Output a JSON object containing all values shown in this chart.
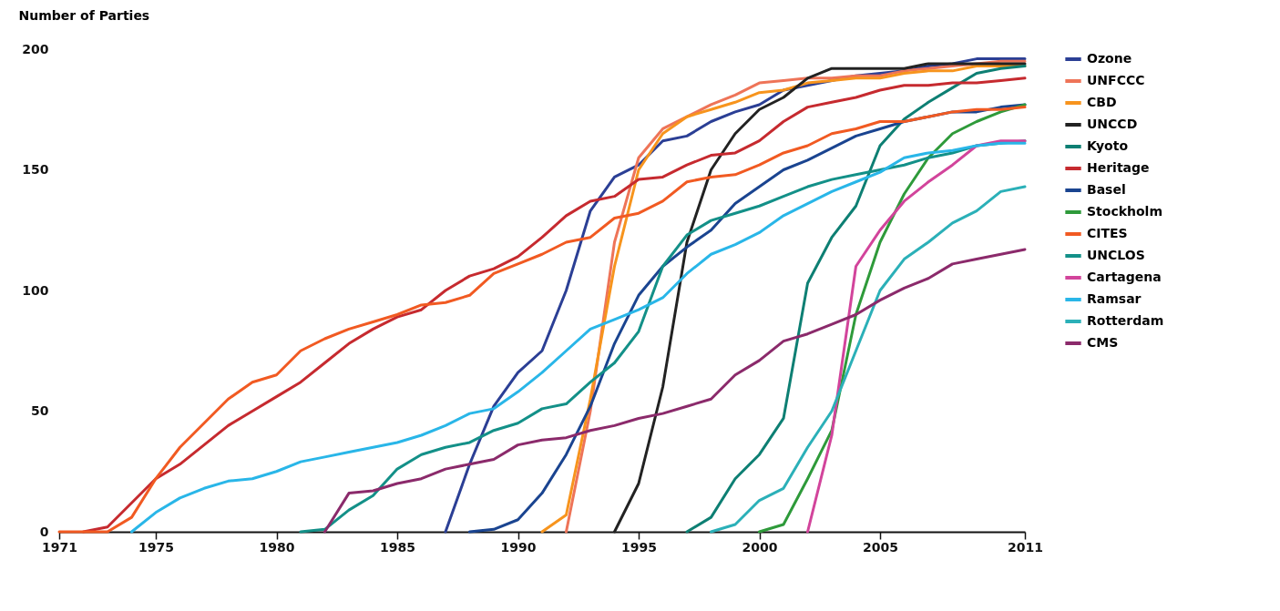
{
  "chart_data": {
    "type": "line",
    "ylabel": "Number of Parties",
    "xlim": [
      1971,
      2011
    ],
    "xticks": [
      1971,
      1975,
      1980,
      1985,
      1990,
      1995,
      2000,
      2005,
      2011
    ],
    "ylim": [
      0,
      200
    ],
    "yticks": [
      0,
      50,
      100,
      150,
      200
    ],
    "legend": "right",
    "line_style": "solid",
    "marker": "none",
    "series": [
      {
        "name": "Ozone",
        "color": "#2b3f95",
        "x": [
          1987,
          1988,
          1989,
          1990,
          1991,
          1992,
          1993,
          1994,
          1995,
          1996,
          1997,
          1998,
          1999,
          2000,
          2001,
          2002,
          2003,
          2004,
          2005,
          2006,
          2007,
          2008,
          2009,
          2010,
          2011
        ],
        "values": [
          0,
          28,
          52,
          66,
          75,
          100,
          133,
          147,
          152,
          162,
          164,
          170,
          174,
          177,
          183,
          185,
          187,
          189,
          190,
          191,
          193,
          194,
          196,
          196,
          196
        ]
      },
      {
        "name": "UNFCCC",
        "color": "#ee7458",
        "x": [
          1992,
          1993,
          1994,
          1995,
          1996,
          1997,
          1998,
          1999,
          2000,
          2001,
          2002,
          2003,
          2004,
          2005,
          2006,
          2007,
          2008,
          2009,
          2010,
          2011
        ],
        "values": [
          0,
          50,
          120,
          155,
          167,
          172,
          177,
          181,
          186,
          187,
          188,
          188,
          189,
          189,
          191,
          192,
          193,
          194,
          195,
          195
        ]
      },
      {
        "name": "CBD",
        "color": "#f7941d",
        "x": [
          1991,
          1992,
          1993,
          1994,
          1995,
          1996,
          1997,
          1998,
          1999,
          2000,
          2001,
          2002,
          2003,
          2004,
          2005,
          2006,
          2007,
          2008,
          2009,
          2010,
          2011
        ],
        "values": [
          0,
          7,
          55,
          110,
          150,
          165,
          172,
          175,
          178,
          182,
          183,
          186,
          187,
          188,
          188,
          190,
          191,
          191,
          193,
          193,
          193
        ]
      },
      {
        "name": "UNCCD",
        "color": "#222222",
        "x": [
          1994,
          1995,
          1996,
          1997,
          1998,
          1999,
          2000,
          2001,
          2002,
          2003,
          2004,
          2005,
          2006,
          2007,
          2008,
          2009,
          2010,
          2011
        ],
        "values": [
          0,
          20,
          60,
          120,
          150,
          165,
          175,
          180,
          188,
          192,
          192,
          192,
          192,
          194,
          194,
          194,
          194,
          194
        ]
      },
      {
        "name": "Kyoto",
        "color": "#0d7f73",
        "x": [
          1997,
          1998,
          1999,
          2000,
          2001,
          2002,
          2003,
          2004,
          2005,
          2006,
          2007,
          2008,
          2009,
          2010,
          2011
        ],
        "values": [
          0,
          6,
          22,
          32,
          47,
          103,
          122,
          135,
          160,
          171,
          178,
          184,
          190,
          192,
          193
        ]
      },
      {
        "name": "Heritage",
        "color": "#c62a2f",
        "x": [
          1972,
          1973,
          1974,
          1975,
          1976,
          1977,
          1978,
          1979,
          1980,
          1981,
          1982,
          1983,
          1984,
          1985,
          1986,
          1987,
          1988,
          1989,
          1990,
          1991,
          1992,
          1993,
          1994,
          1995,
          1996,
          1997,
          1998,
          1999,
          2000,
          2001,
          2002,
          2003,
          2004,
          2005,
          2006,
          2007,
          2008,
          2009,
          2010,
          2011
        ],
        "values": [
          0,
          2,
          12,
          22,
          28,
          36,
          44,
          50,
          56,
          62,
          70,
          78,
          84,
          89,
          92,
          100,
          106,
          109,
          114,
          122,
          131,
          137,
          139,
          146,
          147,
          152,
          156,
          157,
          162,
          170,
          176,
          178,
          180,
          183,
          185,
          185,
          186,
          186,
          187,
          188
        ]
      },
      {
        "name": "Basel",
        "color": "#1a4490",
        "x": [
          1988,
          1989,
          1990,
          1991,
          1992,
          1993,
          1994,
          1995,
          1996,
          1997,
          1998,
          1999,
          2000,
          2001,
          2002,
          2003,
          2004,
          2005,
          2006,
          2007,
          2008,
          2009,
          2010,
          2011
        ],
        "values": [
          0,
          1,
          5,
          16,
          32,
          52,
          78,
          98,
          110,
          118,
          125,
          136,
          143,
          150,
          154,
          159,
          164,
          167,
          170,
          172,
          174,
          174,
          176,
          177
        ]
      },
      {
        "name": "Stockholm",
        "color": "#2e9a3a",
        "x": [
          2000,
          2001,
          2002,
          2003,
          2004,
          2005,
          2006,
          2007,
          2008,
          2009,
          2010,
          2011
        ],
        "values": [
          0,
          3,
          22,
          42,
          90,
          120,
          140,
          155,
          165,
          170,
          174,
          177
        ]
      },
      {
        "name": "CITES",
        "color": "#f15a22",
        "x": [
          1971,
          1972,
          1973,
          1974,
          1975,
          1976,
          1977,
          1978,
          1979,
          1980,
          1981,
          1982,
          1983,
          1984,
          1985,
          1986,
          1987,
          1988,
          1989,
          1990,
          1991,
          1992,
          1993,
          1994,
          1995,
          1996,
          1997,
          1998,
          1999,
          2000,
          2001,
          2002,
          2003,
          2004,
          2005,
          2006,
          2007,
          2008,
          2009,
          2010,
          2011
        ],
        "values": [
          0,
          0,
          0,
          6,
          22,
          35,
          45,
          55,
          62,
          65,
          75,
          80,
          84,
          87,
          90,
          94,
          95,
          98,
          107,
          111,
          115,
          120,
          122,
          130,
          132,
          137,
          145,
          147,
          148,
          152,
          157,
          160,
          165,
          167,
          170,
          170,
          172,
          174,
          175,
          175,
          176
        ]
      },
      {
        "name": "UNCLOS",
        "color": "#139088",
        "x": [
          1981,
          1982,
          1983,
          1984,
          1985,
          1986,
          1987,
          1988,
          1989,
          1990,
          1991,
          1992,
          1993,
          1994,
          1995,
          1996,
          1997,
          1998,
          1999,
          2000,
          2001,
          2002,
          2003,
          2004,
          2005,
          2006,
          2007,
          2008,
          2009,
          2010,
          2011
        ],
        "values": [
          0,
          1,
          9,
          15,
          26,
          32,
          35,
          37,
          42,
          45,
          51,
          53,
          62,
          70,
          83,
          110,
          123,
          129,
          132,
          135,
          139,
          143,
          146,
          148,
          150,
          152,
          155,
          157,
          160,
          161,
          162
        ]
      },
      {
        "name": "Cartagena",
        "color": "#d2449b",
        "x": [
          2002,
          2003,
          2004,
          2005,
          2006,
          2007,
          2008,
          2009,
          2010,
          2011
        ],
        "values": [
          0,
          40,
          110,
          125,
          137,
          145,
          152,
          160,
          162,
          162
        ]
      },
      {
        "name": "Ramsar",
        "color": "#29b6e8",
        "x": [
          1974,
          1975,
          1976,
          1977,
          1978,
          1979,
          1980,
          1981,
          1982,
          1983,
          1984,
          1985,
          1986,
          1987,
          1988,
          1989,
          1990,
          1991,
          1992,
          1993,
          1994,
          1995,
          1996,
          1997,
          1998,
          1999,
          2000,
          2001,
          2002,
          2003,
          2004,
          2005,
          2006,
          2007,
          2008,
          2009,
          2010,
          2011
        ],
        "values": [
          0,
          8,
          14,
          18,
          21,
          22,
          25,
          29,
          31,
          33,
          35,
          37,
          40,
          44,
          49,
          51,
          58,
          66,
          75,
          84,
          88,
          92,
          97,
          107,
          115,
          119,
          124,
          131,
          136,
          141,
          145,
          149,
          155,
          157,
          158,
          160,
          161,
          161
        ]
      },
      {
        "name": "Rotterdam",
        "color": "#2bb0b8",
        "x": [
          1998,
          1999,
          2000,
          2001,
          2002,
          2003,
          2004,
          2005,
          2006,
          2007,
          2008,
          2009,
          2010,
          2011
        ],
        "values": [
          0,
          3,
          13,
          18,
          35,
          50,
          75,
          100,
          113,
          120,
          128,
          133,
          141,
          143
        ]
      },
      {
        "name": "CMS",
        "color": "#8b2a6b",
        "x": [
          1982,
          1983,
          1984,
          1985,
          1986,
          1987,
          1988,
          1989,
          1990,
          1991,
          1992,
          1993,
          1994,
          1995,
          1996,
          1997,
          1998,
          1999,
          2000,
          2001,
          2002,
          2003,
          2004,
          2005,
          2006,
          2007,
          2008,
          2009,
          2010,
          2011
        ],
        "values": [
          0,
          16,
          17,
          20,
          22,
          26,
          28,
          30,
          36,
          38,
          39,
          42,
          44,
          47,
          49,
          52,
          55,
          65,
          71,
          79,
          82,
          86,
          90,
          96,
          101,
          105,
          111,
          113,
          115,
          117
        ]
      }
    ]
  }
}
